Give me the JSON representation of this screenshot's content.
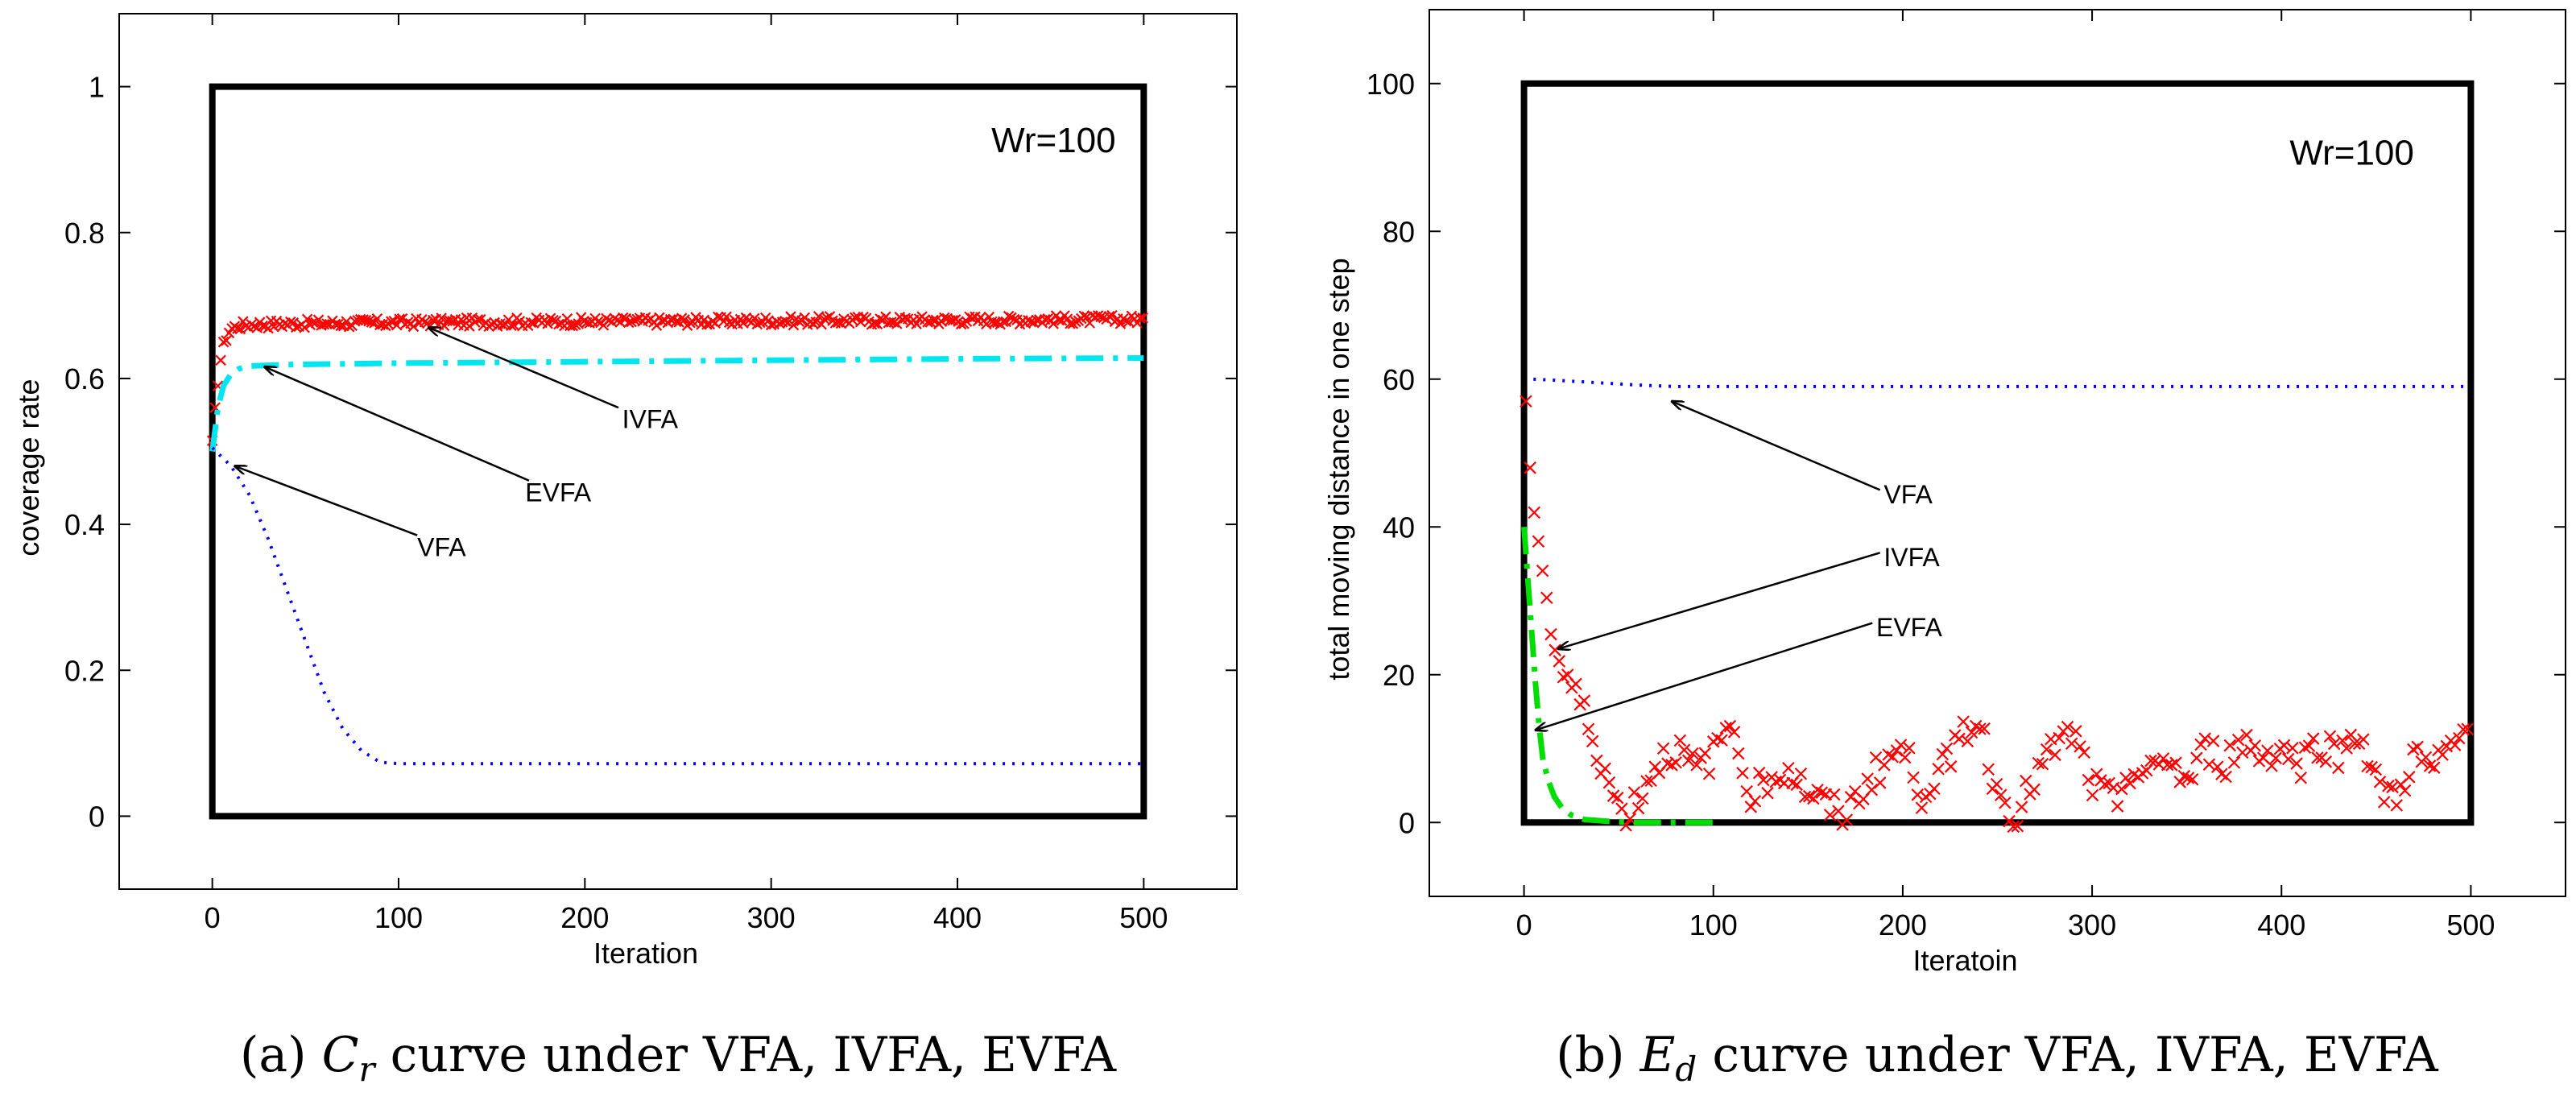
{
  "chart_data": [
    {
      "type": "line",
      "panel_id": "a",
      "caption": {
        "prefix": "(a)",
        "symbol_main": "C",
        "symbol_sub": "r",
        "text": "curve under VFA, IVFA, EVFA"
      },
      "xlabel": "Iteration",
      "ylabel": "coverage rate",
      "xlim": [
        -50,
        550
      ],
      "ylim": [
        -0.1,
        1.1
      ],
      "xticks": [
        0,
        100,
        200,
        300,
        400,
        500
      ],
      "xtick_labels": [
        "0",
        "100",
        "200",
        "300",
        "400",
        "500"
      ],
      "yticks": [
        0,
        0.2,
        0.4,
        0.6,
        0.8,
        1
      ],
      "ytick_labels": [
        "0",
        "0.2",
        "0.4",
        "0.6",
        "0.8",
        "1"
      ],
      "frame_box": {
        "x": [
          0,
          500
        ],
        "y": [
          0,
          1
        ]
      },
      "grid": false,
      "annotation_text": "Wr=100",
      "annotation_at": [
        485,
        0.91
      ],
      "series": [
        {
          "name": "IVFA",
          "color": "#ff0000",
          "style": "x-markers",
          "points": [
            [
              0,
              0.51
            ],
            [
              2,
              0.57
            ],
            [
              4,
              0.62
            ],
            [
              6,
              0.645
            ],
            [
              8,
              0.66
            ],
            [
              10,
              0.668
            ],
            [
              14,
              0.672
            ],
            [
              20,
              0.674
            ],
            [
              40,
              0.675
            ],
            [
              80,
              0.676
            ],
            [
              120,
              0.677
            ],
            [
              200,
              0.678
            ],
            [
              300,
              0.679
            ],
            [
              400,
              0.68
            ],
            [
              500,
              0.681
            ]
          ]
        },
        {
          "name": "EVFA",
          "color": "#00e5ee",
          "style": "dash-dot",
          "points": [
            [
              0,
              0.5
            ],
            [
              3,
              0.56
            ],
            [
              6,
              0.59
            ],
            [
              10,
              0.606
            ],
            [
              14,
              0.613
            ],
            [
              20,
              0.617
            ],
            [
              40,
              0.619
            ],
            [
              100,
              0.621
            ],
            [
              200,
              0.623
            ],
            [
              300,
              0.625
            ],
            [
              400,
              0.627
            ],
            [
              500,
              0.628
            ]
          ]
        },
        {
          "name": "VFA",
          "color": "#0000ff",
          "style": "dotted",
          "points": [
            [
              0,
              0.505
            ],
            [
              10,
              0.48
            ],
            [
              20,
              0.44
            ],
            [
              30,
              0.38
            ],
            [
              40,
              0.31
            ],
            [
              50,
              0.24
            ],
            [
              60,
              0.17
            ],
            [
              70,
              0.12
            ],
            [
              80,
              0.09
            ],
            [
              90,
              0.074
            ],
            [
              100,
              0.072
            ],
            [
              200,
              0.072
            ],
            [
              300,
              0.072
            ],
            [
              400,
              0.072
            ],
            [
              500,
              0.072
            ]
          ]
        }
      ],
      "callouts": [
        {
          "label": "IVFA",
          "text_at": [
            220,
            0.545
          ],
          "tail_at": [
            218,
            0.56
          ],
          "head_at": [
            116,
            0.67
          ]
        },
        {
          "label": "EVFA",
          "text_at": [
            168,
            0.445
          ],
          "tail_at": [
            170,
            0.46
          ],
          "head_at": [
            28,
            0.616
          ]
        },
        {
          "label": "VFA",
          "text_at": [
            110,
            0.37
          ],
          "tail_at": [
            110,
            0.385
          ],
          "head_at": [
            12,
            0.48
          ]
        }
      ]
    },
    {
      "type": "line",
      "panel_id": "b",
      "caption": {
        "prefix": "(b)",
        "symbol_main": "E",
        "symbol_sub": "d",
        "text": "curve under VFA, IVFA, EVFA"
      },
      "xlabel": "Iteratoin",
      "ylabel": "total moving distance in one step",
      "xlim": [
        -50,
        550
      ],
      "ylim": [
        -10,
        110
      ],
      "xticks": [
        0,
        100,
        200,
        300,
        400,
        500
      ],
      "xtick_labels": [
        "0",
        "100",
        "200",
        "300",
        "400",
        "500"
      ],
      "yticks": [
        0,
        20,
        40,
        60,
        80,
        100
      ],
      "ytick_labels": [
        "0",
        "20",
        "40",
        "60",
        "80",
        "100"
      ],
      "frame_box": {
        "x": [
          0,
          500
        ],
        "y": [
          0,
          100
        ]
      },
      "grid": false,
      "annotation_text": "Wr=100",
      "annotation_at": [
        470,
        89
      ],
      "series": [
        {
          "name": "VFA",
          "color": "#0000ff",
          "style": "dotted",
          "points": [
            [
              5,
              60
            ],
            [
              20,
              59.8
            ],
            [
              40,
              59.5
            ],
            [
              60,
              59.2
            ],
            [
              80,
              59
            ],
            [
              100,
              59
            ],
            [
              200,
              59
            ],
            [
              300,
              59
            ],
            [
              400,
              59
            ],
            [
              500,
              59
            ]
          ]
        },
        {
          "name": "IVFA",
          "color": "#ff0000",
          "style": "x-markers",
          "points": [
            [
              1,
              55
            ],
            [
              3,
              50
            ],
            [
              5,
              44
            ],
            [
              7,
              40
            ],
            [
              9,
              36
            ],
            [
              11,
              32
            ],
            [
              13,
              28
            ],
            [
              15,
              25
            ],
            [
              18,
              22
            ],
            [
              21,
              20
            ],
            [
              24,
              19
            ],
            [
              27,
              17
            ],
            [
              30,
              16
            ],
            [
              33,
              14
            ],
            [
              36,
              12
            ],
            [
              40,
              9
            ],
            [
              44,
              6
            ],
            [
              48,
              3
            ],
            [
              52,
              1
            ],
            [
              60,
              3
            ],
            [
              70,
              8
            ],
            [
              80,
              10
            ],
            [
              90,
              7
            ],
            [
              100,
              9
            ],
            [
              110,
              14
            ],
            [
              120,
              4
            ],
            [
              130,
              6
            ],
            [
              140,
              7
            ],
            [
              150,
              4
            ],
            [
              160,
              2
            ],
            [
              170,
              1
            ],
            [
              180,
              5
            ],
            [
              190,
              8
            ],
            [
              200,
              10
            ],
            [
              210,
              4
            ],
            [
              220,
              7
            ],
            [
              230,
              12
            ],
            [
              240,
              14
            ],
            [
              250,
              4
            ],
            [
              260,
              1
            ],
            [
              270,
              6
            ],
            [
              280,
              10
            ],
            [
              290,
              12
            ],
            [
              300,
              5
            ],
            [
              310,
              3
            ],
            [
              320,
              7
            ],
            [
              330,
              6
            ],
            [
              340,
              9
            ],
            [
              350,
              5
            ],
            [
              360,
              10
            ],
            [
              370,
              8
            ],
            [
              380,
              11
            ],
            [
              390,
              9
            ],
            [
              400,
              10
            ],
            [
              410,
              8
            ],
            [
              420,
              11
            ],
            [
              430,
              9
            ],
            [
              440,
              13
            ],
            [
              450,
              5
            ],
            [
              460,
              3
            ],
            [
              470,
              9
            ],
            [
              480,
              7
            ],
            [
              490,
              10
            ],
            [
              500,
              13
            ]
          ]
        },
        {
          "name": "EVFA",
          "color": "#00dd00",
          "style": "dash-dot",
          "points": [
            [
              0,
              40
            ],
            [
              2,
              33
            ],
            [
              4,
              26
            ],
            [
              6,
              19
            ],
            [
              8,
              13
            ],
            [
              10,
              8.5
            ],
            [
              13,
              5.5
            ],
            [
              16,
              3.5
            ],
            [
              20,
              2
            ],
            [
              25,
              1
            ],
            [
              32,
              0.4
            ],
            [
              45,
              0.15
            ],
            [
              60,
              0
            ],
            [
              80,
              0
            ],
            [
              100,
              0
            ]
          ]
        }
      ],
      "callouts": [
        {
          "label": "VFA",
          "text_at": [
            190,
            44.5
          ],
          "tail_at": [
            188,
            45
          ],
          "head_at": [
            78,
            57
          ]
        },
        {
          "label": "IVFA",
          "text_at": [
            190,
            36
          ],
          "tail_at": [
            188,
            36.5
          ],
          "head_at": [
            18,
            23.5
          ]
        },
        {
          "label": "EVFA",
          "text_at": [
            186,
            26.5
          ],
          "tail_at": [
            184,
            27
          ],
          "head_at": [
            6,
            12.5
          ]
        }
      ]
    }
  ]
}
